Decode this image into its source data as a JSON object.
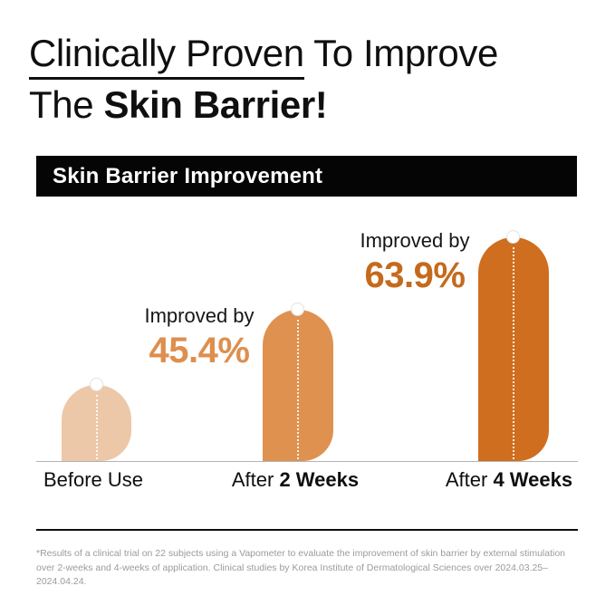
{
  "title": {
    "line1_underlined": "Clinically Proven",
    "line1_rest": " To Improve",
    "line2_pre": "The ",
    "line2_bold": "Skin Barrier!"
  },
  "banner": {
    "label": "Skin Barrier Improvement",
    "bg": "#050505",
    "text_color": "#ffffff"
  },
  "chart_data": {
    "type": "bar",
    "title": "Skin Barrier Improvement",
    "categories": [
      "Before Use",
      "After 2 Weeks",
      "After 4 Weeks"
    ],
    "values": [
      0,
      45.4,
      63.9
    ],
    "value_labels": [
      "",
      "45.4%",
      "63.9%"
    ],
    "annotation_prefix": "Improved by",
    "bar_heights_relative": [
      84,
      167,
      247
    ],
    "bar_colors": [
      "#ecc8a9",
      "#df9150",
      "#cf6e1f"
    ],
    "marker": "white-dot-with-dotted-center-line",
    "baseline_color": "#b3b3b3",
    "grid": false,
    "legend": false,
    "xlabel": "",
    "ylabel": ""
  },
  "annotations": [
    {
      "label": "Improved by",
      "value": "45.4%",
      "color": "#de8f4d"
    },
    {
      "label": "Improved by",
      "value": "63.9%",
      "color": "#c56a1d"
    }
  ],
  "x_labels": [
    {
      "pre": "Before Use",
      "bold": ""
    },
    {
      "pre": "After ",
      "bold": "2 Weeks"
    },
    {
      "pre": "After ",
      "bold": "4 Weeks"
    }
  ],
  "footnote": {
    "line1": "*Results of a clinical trial on 22 subjects using a Vapometer to evaluate the improvement of skin barrier by external stimulation",
    "line2": "over 2-weeks and 4-weeks of application. Clinical studies by Korea Institute of Dermatological Sciences over 2024.03.25–2024.04.24."
  }
}
